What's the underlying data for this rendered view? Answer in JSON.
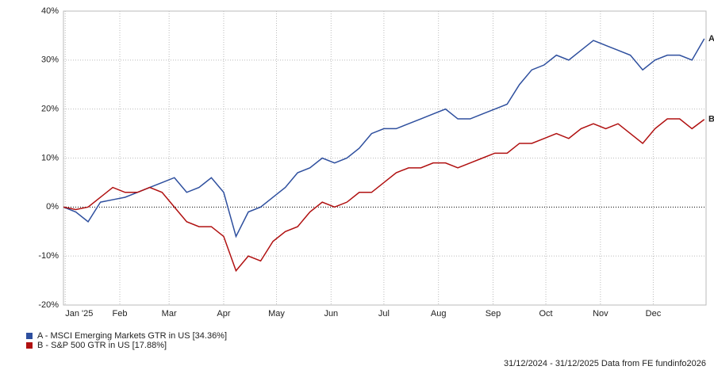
{
  "chart_data": {
    "type": "line",
    "x": [
      0,
      7,
      14,
      21,
      28,
      35,
      42,
      49,
      56,
      63,
      70,
      77,
      84,
      91,
      98,
      105,
      112,
      119,
      126,
      133,
      140,
      147,
      154,
      161,
      168,
      175,
      182,
      189,
      196,
      203,
      210,
      217,
      224,
      231,
      238,
      245,
      252,
      259,
      266,
      273,
      280,
      287,
      294,
      301,
      308,
      315,
      322,
      329,
      336,
      343,
      350,
      357,
      364
    ],
    "xlim": [
      0,
      365
    ],
    "xticks": [
      {
        "value": 1,
        "label": "Jan '25"
      },
      {
        "value": 32,
        "label": "Feb"
      },
      {
        "value": 60,
        "label": "Mar"
      },
      {
        "value": 91,
        "label": "Apr"
      },
      {
        "value": 121,
        "label": "May"
      },
      {
        "value": 152,
        "label": "Jun"
      },
      {
        "value": 182,
        "label": "Jul"
      },
      {
        "value": 213,
        "label": "Aug"
      },
      {
        "value": 244,
        "label": "Sep"
      },
      {
        "value": 274,
        "label": "Oct"
      },
      {
        "value": 305,
        "label": "Nov"
      },
      {
        "value": 335,
        "label": "Dec"
      }
    ],
    "ylim": [
      -20,
      40
    ],
    "yticks": [
      {
        "value": -20,
        "label": "-20%"
      },
      {
        "value": -10,
        "label": "-10%"
      },
      {
        "value": 0,
        "label": "0%"
      },
      {
        "value": 10,
        "label": "10%"
      },
      {
        "value": 20,
        "label": "20%"
      },
      {
        "value": 30,
        "label": "30%"
      },
      {
        "value": 40,
        "label": "40%"
      }
    ],
    "grid": true,
    "series": [
      {
        "name": "A - MSCI Emerging Markets GTR in US [34.36%]",
        "end_label": "A",
        "color": "#2e4f9e",
        "values": [
          0,
          -1,
          -3,
          1,
          1.5,
          2,
          3,
          4,
          5,
          6,
          3,
          4,
          6,
          3,
          -6,
          -1,
          0,
          2,
          4,
          7,
          8,
          10,
          9,
          10,
          12,
          15,
          16,
          16,
          17,
          18,
          19,
          20,
          18,
          18,
          19,
          20,
          21,
          25,
          28,
          29,
          31,
          30,
          32,
          34,
          33,
          32,
          31,
          28,
          30,
          31,
          31,
          30,
          34.36
        ]
      },
      {
        "name": "B - S&P 500 GTR in US [17.88%]",
        "end_label": "B",
        "color": "#b01010",
        "values": [
          0,
          -0.5,
          0,
          2,
          4,
          3,
          3,
          4,
          3,
          0,
          -3,
          -4,
          -4,
          -6,
          -13,
          -10,
          -11,
          -7,
          -5,
          -4,
          -1,
          1,
          0,
          1,
          3,
          3,
          5,
          7,
          8,
          8,
          9,
          9,
          8,
          9,
          10,
          11,
          11,
          13,
          13,
          14,
          15,
          14,
          16,
          17,
          16,
          17,
          15,
          13,
          16,
          18,
          18,
          16,
          17.88
        ]
      }
    ],
    "footer": "31/12/2024 - 31/12/2025 Data from FE fundinfo2026"
  }
}
